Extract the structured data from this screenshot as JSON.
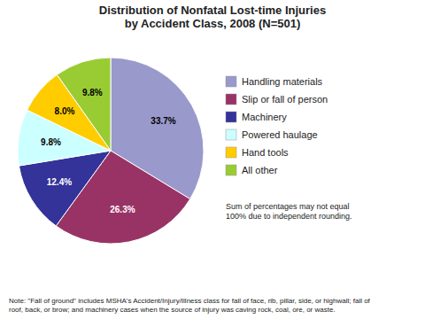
{
  "chart_data": {
    "type": "pie",
    "title": "Distribution of Nonfatal Lost-time Injuries\nby Accident Class, 2008 (N=501)",
    "categories": [
      "Handling materials",
      "Slip or fall of person",
      "Machinery",
      "Powered haulage",
      "Hand tools",
      "All other"
    ],
    "values": [
      33.7,
      26.3,
      12.4,
      9.8,
      8.0,
      9.8
    ],
    "value_labels": [
      "33.7%",
      "26.3%",
      "12.4%",
      "9.8%",
      "8.0%",
      "9.8%"
    ],
    "colors": [
      "#9999CC",
      "#993366",
      "#333399",
      "#CCFFFF",
      "#FFCC00",
      "#99CC33"
    ],
    "data_labels": true,
    "legend": "right",
    "annotations": [
      "Sum of percentages may not equal\n100% due to independent rounding.",
      "Note: \"Fall of ground\" includes MSHA's Accident/Injury/Illness class for fall of face, rib, pillar, side, or highwall; fall of\nroof, back, or brow; and machinery cases when the source of injury was caving rock, coal, ore, or waste."
    ]
  }
}
